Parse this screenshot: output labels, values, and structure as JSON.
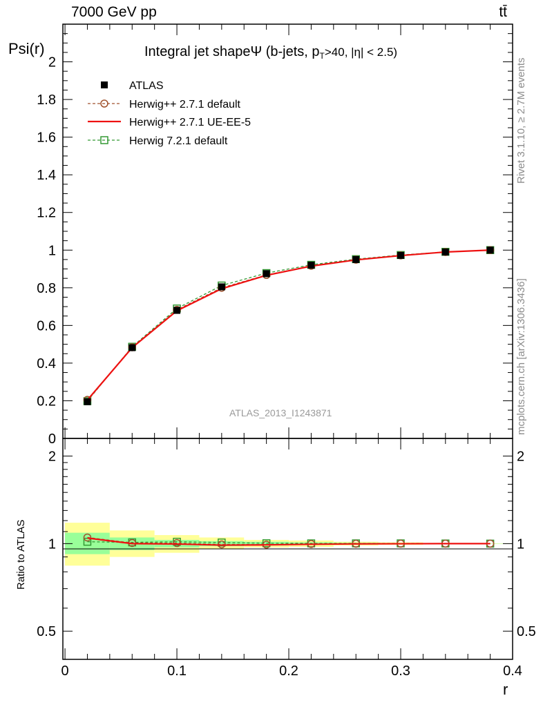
{
  "header": {
    "energy_label": "7000 GeV pp",
    "process_label": "tt̄",
    "title": "Integral jet shapeΨ (b-jets, p",
    "title_sub": "T",
    "title_tail": ">40, |η| < 2.5)",
    "watermark": "ATLAS_2013_I1243871",
    "side_text_top": "Rivet 3.1.10, ≥ 2.7M events",
    "side_text_bottom": "mcplots.cern.ch [arXiv:1306.3436]"
  },
  "colors": {
    "atlas": "#000000",
    "herwigpp_default": "#a0522d",
    "herwigpp_ueee5": "#ee1111",
    "herwig7": "#339933",
    "band_inner": "#99ff99",
    "band_outer": "#ffff99"
  },
  "chart_data": [
    {
      "type": "line",
      "xlabel": "",
      "ylabel": "Psi(r)",
      "xlim": [
        -0.0019,
        0.4
      ],
      "ylim": [
        0,
        2.2
      ],
      "yticks": [
        "0",
        "0.2",
        "0.4",
        "0.6",
        "0.8",
        "1",
        "1.2",
        "1.4",
        "1.6",
        "1.8",
        "2"
      ],
      "legend_position": "top-left",
      "x": [
        0.02,
        0.06,
        0.1,
        0.14,
        0.18,
        0.22,
        0.26,
        0.3,
        0.34,
        0.38
      ],
      "series": [
        {
          "name": "ATLAS",
          "style": "markers",
          "marker": "filled-square",
          "values": [
            0.195,
            0.482,
            0.68,
            0.805,
            0.875,
            0.92,
            0.95,
            0.972,
            0.99,
            1.0
          ]
        },
        {
          "name": "Herwig++ 2.7.1 default",
          "style": "dashed",
          "marker": "open-circle",
          "values": [
            0.205,
            0.484,
            0.683,
            0.8,
            0.868,
            0.917,
            0.949,
            0.972,
            0.99,
            1.0
          ]
        },
        {
          "name": "Herwig++ 2.7.1 UE-EE-5",
          "style": "solid",
          "marker": "none",
          "values": [
            0.204,
            0.482,
            0.678,
            0.795,
            0.866,
            0.915,
            0.948,
            0.971,
            0.99,
            1.0
          ]
        },
        {
          "name": "Herwig 7.2.1 default",
          "style": "dashed",
          "marker": "open-square",
          "values": [
            0.198,
            0.487,
            0.69,
            0.812,
            0.878,
            0.922,
            0.952,
            0.974,
            0.991,
            1.0
          ]
        }
      ]
    },
    {
      "type": "line",
      "xlabel": "r",
      "ylabel": "Ratio to ATLAS",
      "xlim": [
        -0.0019,
        0.4
      ],
      "ylim": [
        0.4,
        2.3
      ],
      "y_scale": "log",
      "xticks": [
        "0",
        "0.1",
        "0.2",
        "0.3",
        "0.4"
      ],
      "yticks": [
        "0.5",
        "1",
        "2"
      ],
      "x": [
        0.02,
        0.06,
        0.1,
        0.14,
        0.18,
        0.22,
        0.26,
        0.3,
        0.34,
        0.38
      ],
      "bands": {
        "x_edges": [
          0.0,
          0.04,
          0.08,
          0.12,
          0.16,
          0.2,
          0.24,
          0.28,
          0.32,
          0.36,
          0.4
        ],
        "inner": [
          [
            0.92,
            1.09
          ],
          [
            0.95,
            1.05
          ],
          [
            0.97,
            1.03
          ],
          [
            0.98,
            1.02
          ],
          [
            0.985,
            1.015
          ],
          [
            0.99,
            1.01
          ],
          [
            0.993,
            1.007
          ],
          [
            0.995,
            1.005
          ],
          [
            0.997,
            1.003
          ],
          [
            0.999,
            1.001
          ]
        ],
        "outer": [
          [
            0.84,
            1.18
          ],
          [
            0.9,
            1.11
          ],
          [
            0.93,
            1.07
          ],
          [
            0.96,
            1.05
          ],
          [
            0.97,
            1.03
          ],
          [
            0.975,
            1.025
          ],
          [
            0.985,
            1.015
          ],
          [
            0.99,
            1.01
          ],
          [
            0.995,
            1.005
          ],
          [
            0.998,
            1.002
          ]
        ]
      },
      "series": [
        {
          "name": "Herwig++ 2.7.1 default",
          "style": "dashed",
          "marker": "open-circle",
          "values": [
            1.05,
            1.005,
            1.004,
            0.994,
            0.992,
            0.997,
            0.999,
            1.0,
            1.0,
            1.0
          ]
        },
        {
          "name": "Herwig++ 2.7.1 UE-EE-5",
          "style": "solid",
          "marker": "none",
          "values": [
            1.045,
            1.0,
            0.997,
            0.988,
            0.99,
            0.995,
            0.998,
            0.999,
            1.0,
            1.0
          ]
        },
        {
          "name": "Herwig 7.2.1 default",
          "style": "dashed",
          "marker": "open-square",
          "values": [
            1.015,
            1.01,
            1.015,
            1.009,
            1.003,
            1.002,
            1.002,
            1.002,
            1.001,
            1.0
          ]
        }
      ]
    }
  ]
}
